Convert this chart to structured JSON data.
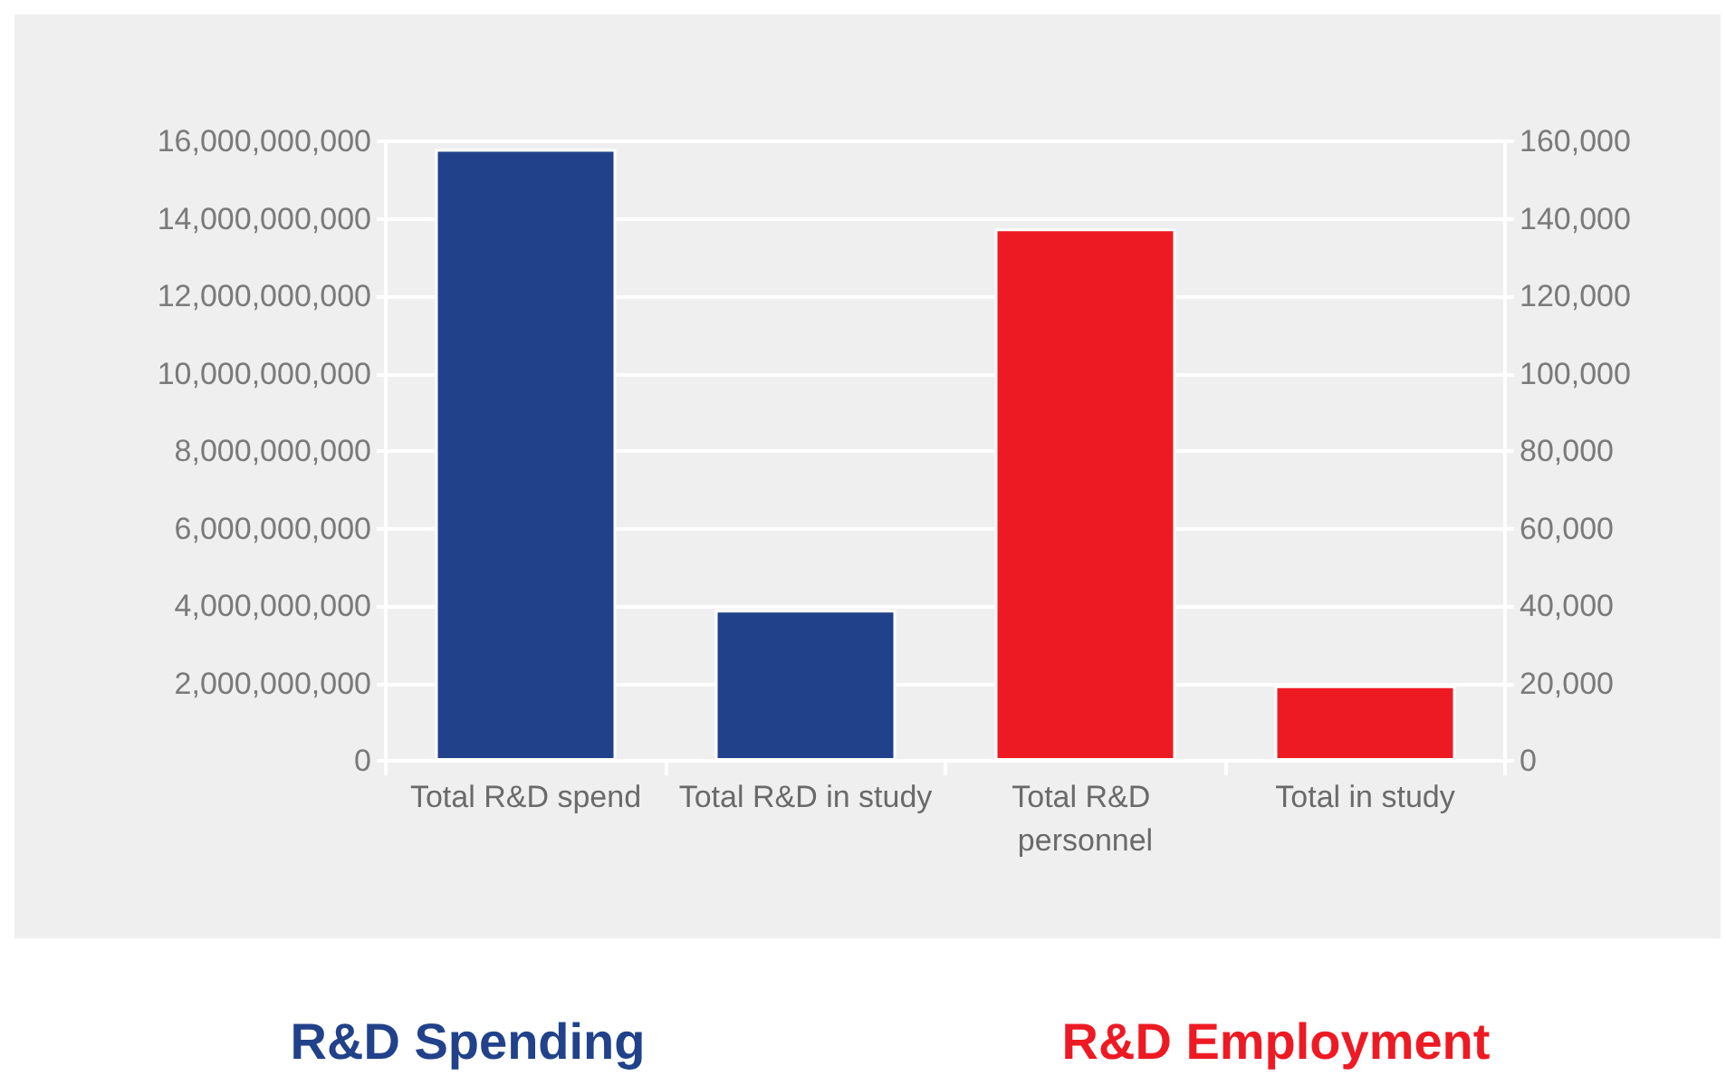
{
  "chart_data": {
    "type": "bar",
    "categories": [
      "Total R&D spend",
      "Total R&D in study",
      "Total R&D personnel",
      "Total in study"
    ],
    "series": [
      {
        "name": "R&D Spending",
        "color": "#21428a",
        "values": [
          15800000000,
          3900000000,
          null,
          null
        ]
      },
      {
        "name": "R&D Employment",
        "color": "#ee1a23",
        "axis": "y2",
        "values": [
          null,
          null,
          137500,
          19500
        ]
      }
    ],
    "ylim": [
      0,
      16000000000
    ],
    "yticks": [
      0,
      {
        "value": 2000000000,
        "label": "2,000,000,000"
      },
      {
        "value": 4000000000,
        "label": "4,000,000,000"
      },
      {
        "value": 6000000000,
        "label": "6,000,000,000"
      },
      {
        "value": 8000000000,
        "label": "8,000,000,000"
      },
      {
        "value": 10000000000,
        "label": "10,000,000,000"
      },
      {
        "value": 12000000000,
        "label": "12,000,000,000"
      },
      {
        "value": 14000000000,
        "label": "14,000,000,000"
      },
      {
        "value": 16000000000,
        "label": "16,000,000,000"
      }
    ],
    "y2lim": [
      0,
      160000
    ],
    "y2ticks": [
      0,
      {
        "value": 20000,
        "label": "20,000"
      },
      {
        "value": 40000,
        "label": "40,000"
      },
      {
        "value": 60000,
        "label": "60,000"
      },
      {
        "value": 80000,
        "label": "80,000"
      },
      {
        "value": 100000,
        "label": "100,000"
      },
      {
        "value": 120000,
        "label": "120,000"
      },
      {
        "value": 140000,
        "label": "140,000"
      },
      {
        "value": 160000,
        "label": "160,000"
      }
    ],
    "grid": true,
    "legend": "bottom"
  }
}
